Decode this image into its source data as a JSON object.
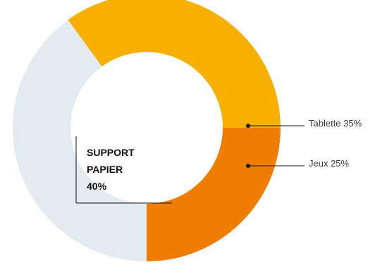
{
  "chart_data": {
    "type": "pie",
    "variant": "donut",
    "slices": [
      {
        "label": "Tablette 35%",
        "value": 35,
        "color": "#F7B000"
      },
      {
        "label": "Jeux 25%",
        "value": 25,
        "color": "#EF7D00"
      },
      {
        "label": "SUPPORT PAPIER 40%",
        "value": 40,
        "color": "#E2ECF0"
      }
    ],
    "center_label": {
      "lines": [
        "SUPPORT",
        "PAPIER",
        "40%"
      ]
    },
    "legend": "callouts-right"
  }
}
